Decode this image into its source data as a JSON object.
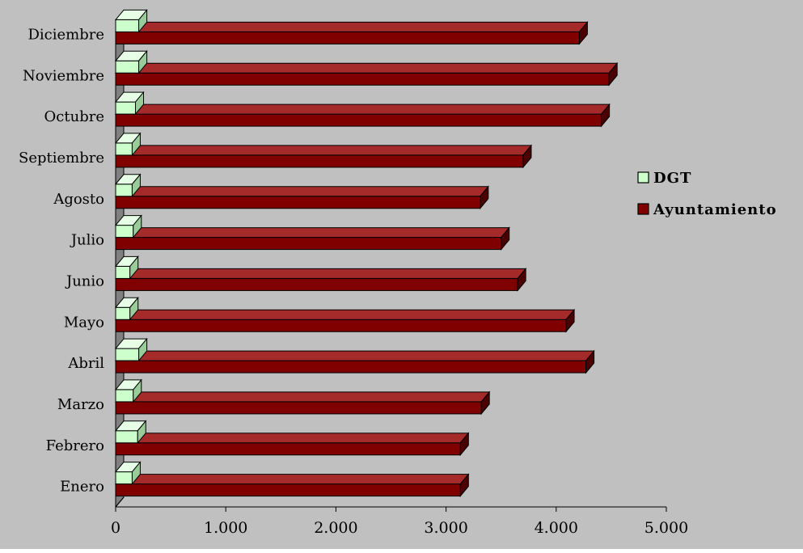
{
  "chart_data": {
    "type": "bar",
    "orientation": "horizontal",
    "style": "3d",
    "categories": [
      "Enero",
      "Febrero",
      "Marzo",
      "Abril",
      "Mayo",
      "Junio",
      "Julio",
      "Agosto",
      "Septiembre",
      "Octubre",
      "Noviembre",
      "Diciembre"
    ],
    "series": [
      {
        "name": "DGT",
        "values": [
          150,
          200,
          160,
          210,
          130,
          130,
          160,
          150,
          150,
          180,
          210,
          210
        ]
      },
      {
        "name": "Ayuntamiento",
        "values": [
          3130,
          3130,
          3320,
          4270,
          4090,
          3650,
          3500,
          3310,
          3700,
          4410,
          4480,
          4210
        ]
      }
    ],
    "xlim": [
      0,
      5000
    ],
    "xticks": [
      0,
      1000,
      2000,
      3000,
      4000,
      5000
    ],
    "xtick_labels": [
      "0",
      "1.000",
      "2.000",
      "3.000",
      "4.000",
      "5.000"
    ],
    "title": "",
    "xlabel": "",
    "ylabel": "",
    "grid": false,
    "legend_position": "right",
    "colors": {
      "plot_background": "#c0c0c0",
      "wall": "#808080",
      "DGT": "#ccffcc",
      "Ayuntamiento": "#800000",
      "Ayuntamiento_top": "#a52a2a",
      "Ayuntamiento_side": "#4a0000",
      "DGT_top": "#e6ffe6",
      "DGT_side": "#99cc99",
      "outline": "#000000"
    }
  }
}
